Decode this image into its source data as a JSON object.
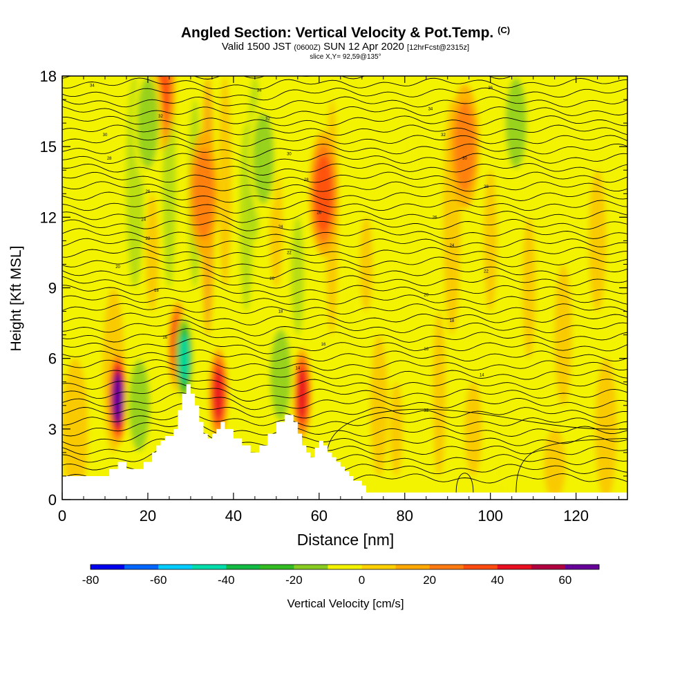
{
  "header": {
    "title": "Angled Section: Vertical Velocity & Pot.Temp.",
    "title_unit": "(C)",
    "valid_prefix": "Valid 1500 JST",
    "valid_z": "(0600Z)",
    "valid_date": "SUN 12 Apr 2020",
    "valid_fcst": "[12hrFcst@2315z]",
    "slice": "slice X,Y= 92,59@135°"
  },
  "chart_data": {
    "type": "heatmap",
    "title": "Angled Section: Vertical Velocity & Pot.Temp. (C)",
    "xlabel": "Distance [nm]",
    "ylabel": "Height [Kft MSL]",
    "xlim": [
      0,
      132
    ],
    "ylim": [
      0,
      18
    ],
    "x_ticks": [
      "0",
      "20",
      "40",
      "60",
      "80",
      "100",
      "120"
    ],
    "y_ticks": [
      "0",
      "3",
      "6",
      "9",
      "12",
      "15",
      "18"
    ],
    "colorbar": {
      "label": "Vertical Velocity [cm/s]",
      "ticks": [
        "-80",
        "-60",
        "-40",
        "-20",
        "0",
        "20",
        "40",
        "60"
      ],
      "range": [
        -80,
        70
      ],
      "colors": [
        "#0000ee",
        "#0066ff",
        "#00ccff",
        "#00ddaa",
        "#11bb44",
        "#33bb22",
        "#88cc22",
        "#f3f300",
        "#ffd000",
        "#ffa800",
        "#ff7a10",
        "#ff4a10",
        "#e81020",
        "#b00040",
        "#660099"
      ]
    },
    "terrain_profile": {
      "x": [
        0,
        9,
        11,
        13,
        15,
        19,
        21,
        22,
        23,
        24,
        26,
        27,
        28,
        29,
        30,
        31,
        32,
        33,
        34,
        35,
        36,
        37,
        38,
        40,
        42,
        44,
        46,
        48,
        50,
        52,
        54,
        55,
        56,
        57,
        58,
        59,
        60,
        61,
        62,
        63,
        64,
        65,
        66,
        67,
        68,
        70,
        71,
        132
      ],
      "height": [
        1.0,
        1.0,
        1.3,
        1.6,
        1.3,
        1.6,
        2.0,
        2.3,
        2.5,
        2.7,
        3.0,
        3.8,
        4.5,
        4.9,
        4.5,
        4.0,
        3.3,
        2.8,
        2.6,
        2.8,
        3.0,
        3.3,
        3.0,
        2.6,
        2.3,
        2.0,
        2.3,
        2.8,
        3.3,
        3.6,
        3.3,
        2.8,
        2.3,
        2.0,
        1.8,
        2.2,
        2.5,
        2.3,
        2.0,
        1.8,
        1.6,
        1.4,
        1.2,
        1.0,
        0.8,
        0.6,
        0.3,
        0.3
      ]
    },
    "vertical_velocity_features": [
      {
        "x": 13,
        "z": 4.3,
        "value": 70
      },
      {
        "x": 27,
        "z": 6.5,
        "value": 45
      },
      {
        "x": 28.5,
        "z": 6.0,
        "value": -50
      },
      {
        "x": 36.5,
        "z": 4.5,
        "value": 40
      },
      {
        "x": 56,
        "z": 4.5,
        "value": 40
      },
      {
        "x": 51,
        "z": 5.3,
        "value": -25
      },
      {
        "x": 18,
        "z": 4.0,
        "value": -25
      },
      {
        "x": 23,
        "z": 17.5,
        "value": 30
      },
      {
        "x": 33,
        "z": 13.0,
        "value": 25
      },
      {
        "x": 61,
        "z": 13.0,
        "value": 30
      },
      {
        "x": 94,
        "z": 15.0,
        "value": 25
      },
      {
        "x": 106,
        "z": 16.0,
        "value": -20
      },
      {
        "x": 47,
        "z": 14.5,
        "value": -20
      },
      {
        "x": 20,
        "z": 16.0,
        "value": -20
      }
    ],
    "pot_temp_contour_labels": [
      {
        "x": 7,
        "z": 17.6,
        "text": "34"
      },
      {
        "x": 46,
        "z": 17.4,
        "text": "34"
      },
      {
        "x": 100,
        "z": 17.5,
        "text": "36"
      },
      {
        "x": 23,
        "z": 16.3,
        "text": "32"
      },
      {
        "x": 48,
        "z": 16.2,
        "text": "32"
      },
      {
        "x": 86,
        "z": 16.6,
        "text": "34"
      },
      {
        "x": 10,
        "z": 15.5,
        "text": "30"
      },
      {
        "x": 89,
        "z": 15.5,
        "text": "32"
      },
      {
        "x": 11,
        "z": 14.5,
        "text": "28"
      },
      {
        "x": 53,
        "z": 14.7,
        "text": "30"
      },
      {
        "x": 94,
        "z": 14.5,
        "text": "30"
      },
      {
        "x": 57,
        "z": 13.6,
        "text": "28"
      },
      {
        "x": 20,
        "z": 13.1,
        "text": "26"
      },
      {
        "x": 99,
        "z": 13.3,
        "text": "28"
      },
      {
        "x": 60,
        "z": 12.2,
        "text": "26"
      },
      {
        "x": 19,
        "z": 11.9,
        "text": "24"
      },
      {
        "x": 87,
        "z": 12.0,
        "text": "26"
      },
      {
        "x": 51,
        "z": 11.6,
        "text": "24"
      },
      {
        "x": 20,
        "z": 11.1,
        "text": "22"
      },
      {
        "x": 91,
        "z": 10.8,
        "text": "24"
      },
      {
        "x": 53,
        "z": 10.5,
        "text": "22"
      },
      {
        "x": 13,
        "z": 9.9,
        "text": "20"
      },
      {
        "x": 99,
        "z": 9.7,
        "text": "22"
      },
      {
        "x": 49,
        "z": 9.4,
        "text": "20"
      },
      {
        "x": 22,
        "z": 8.9,
        "text": "18"
      },
      {
        "x": 85,
        "z": 8.7,
        "text": "20"
      },
      {
        "x": 51,
        "z": 8.0,
        "text": "18"
      },
      {
        "x": 91,
        "z": 7.6,
        "text": "18"
      },
      {
        "x": 24,
        "z": 6.9,
        "text": "16"
      },
      {
        "x": 61,
        "z": 6.6,
        "text": "16"
      },
      {
        "x": 85,
        "z": 6.4,
        "text": "16"
      },
      {
        "x": 55,
        "z": 5.6,
        "text": "14"
      },
      {
        "x": 98,
        "z": 5.3,
        "text": "14"
      },
      {
        "x": 85,
        "z": 3.8,
        "text": "12"
      }
    ]
  }
}
